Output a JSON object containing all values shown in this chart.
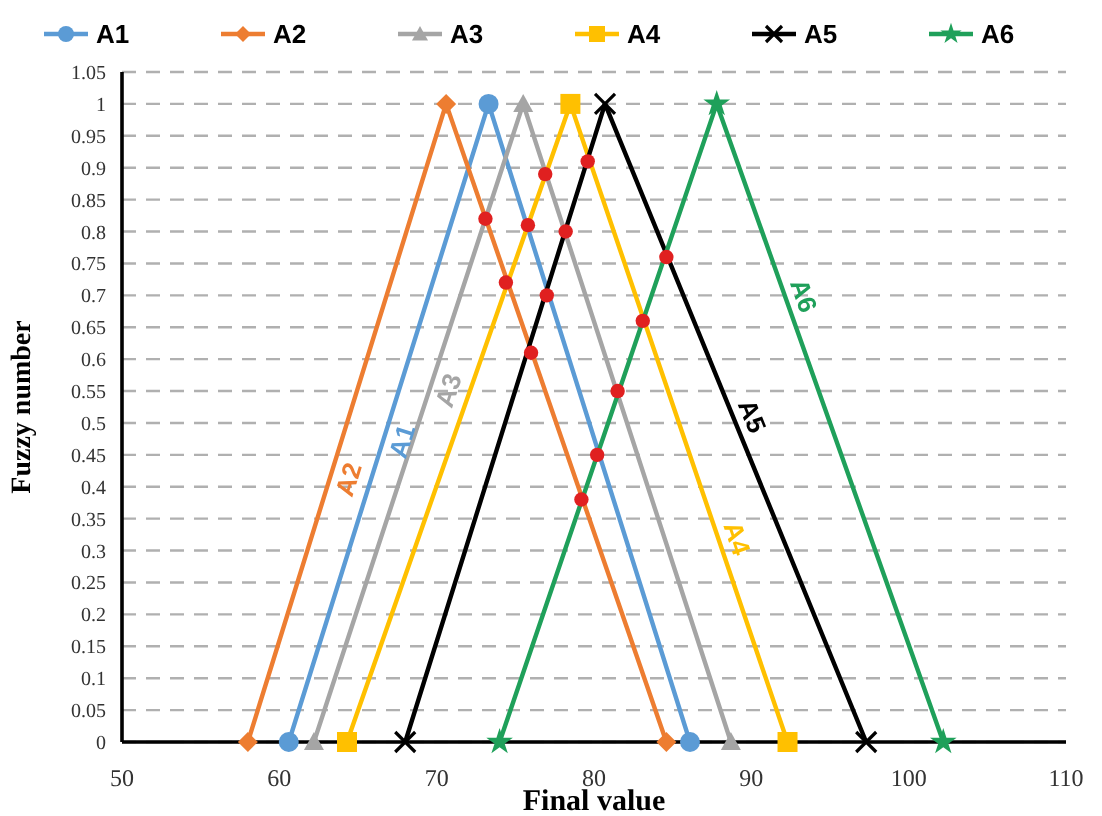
{
  "chart_data": {
    "type": "line",
    "xlabel": "Final value",
    "ylabel": "Fuzzy number",
    "xlim": [
      50,
      110
    ],
    "xticks": [
      50,
      60,
      70,
      80,
      90,
      100,
      110
    ],
    "ylim": [
      0,
      1.05
    ],
    "yticks": [
      0,
      0.05,
      0.1,
      0.15,
      0.2,
      0.25,
      0.3,
      0.35,
      0.4,
      0.45,
      0.5,
      0.55,
      0.6,
      0.65,
      0.7,
      0.75,
      0.8,
      0.85,
      0.9,
      0.95,
      1,
      1.05
    ],
    "grid": "y",
    "legend": "top",
    "line_style": "solid",
    "series": [
      {
        "name": "A1",
        "color": "#5b9bd5",
        "marker": "circle",
        "x": [
          60.6,
          73.3,
          86.1
        ],
        "values": [
          0,
          1,
          0
        ]
      },
      {
        "name": "A2",
        "color": "#ed7d31",
        "marker": "diamond",
        "x": [
          58.0,
          70.6,
          84.6
        ],
        "values": [
          0,
          1,
          0
        ]
      },
      {
        "name": "A3",
        "color": "#a5a5a5",
        "marker": "triangle",
        "x": [
          62.2,
          75.5,
          88.7
        ],
        "values": [
          0,
          1,
          0
        ]
      },
      {
        "name": "A4",
        "color": "#ffc000",
        "marker": "square",
        "x": [
          64.3,
          78.5,
          92.3
        ],
        "values": [
          0,
          1,
          0
        ]
      },
      {
        "name": "A5",
        "color": "#000000",
        "marker": "cross",
        "x": [
          68.0,
          80.7,
          97.3
        ],
        "values": [
          0,
          1,
          0
        ]
      },
      {
        "name": "A6",
        "color": "#1fa05a",
        "marker": "star",
        "x": [
          74.0,
          87.8,
          102.2
        ],
        "values": [
          0,
          1,
          0
        ]
      },
      {
        "type": "scatter",
        "color": "#e02020",
        "marker": "circle",
        "x": [
          76.9,
          79.6,
          73.1,
          75.8,
          78.2,
          84.6,
          74.4,
          77.0,
          83.1,
          76.0,
          81.5,
          80.2,
          79.2
        ],
        "values": [
          0.89,
          0.91,
          0.82,
          0.81,
          0.8,
          0.76,
          0.72,
          0.7,
          0.66,
          0.61,
          0.55,
          0.45,
          0.38
        ]
      }
    ],
    "annotations": [
      "A1",
      "A2",
      "A3",
      "A4",
      "A5",
      "A6"
    ]
  }
}
